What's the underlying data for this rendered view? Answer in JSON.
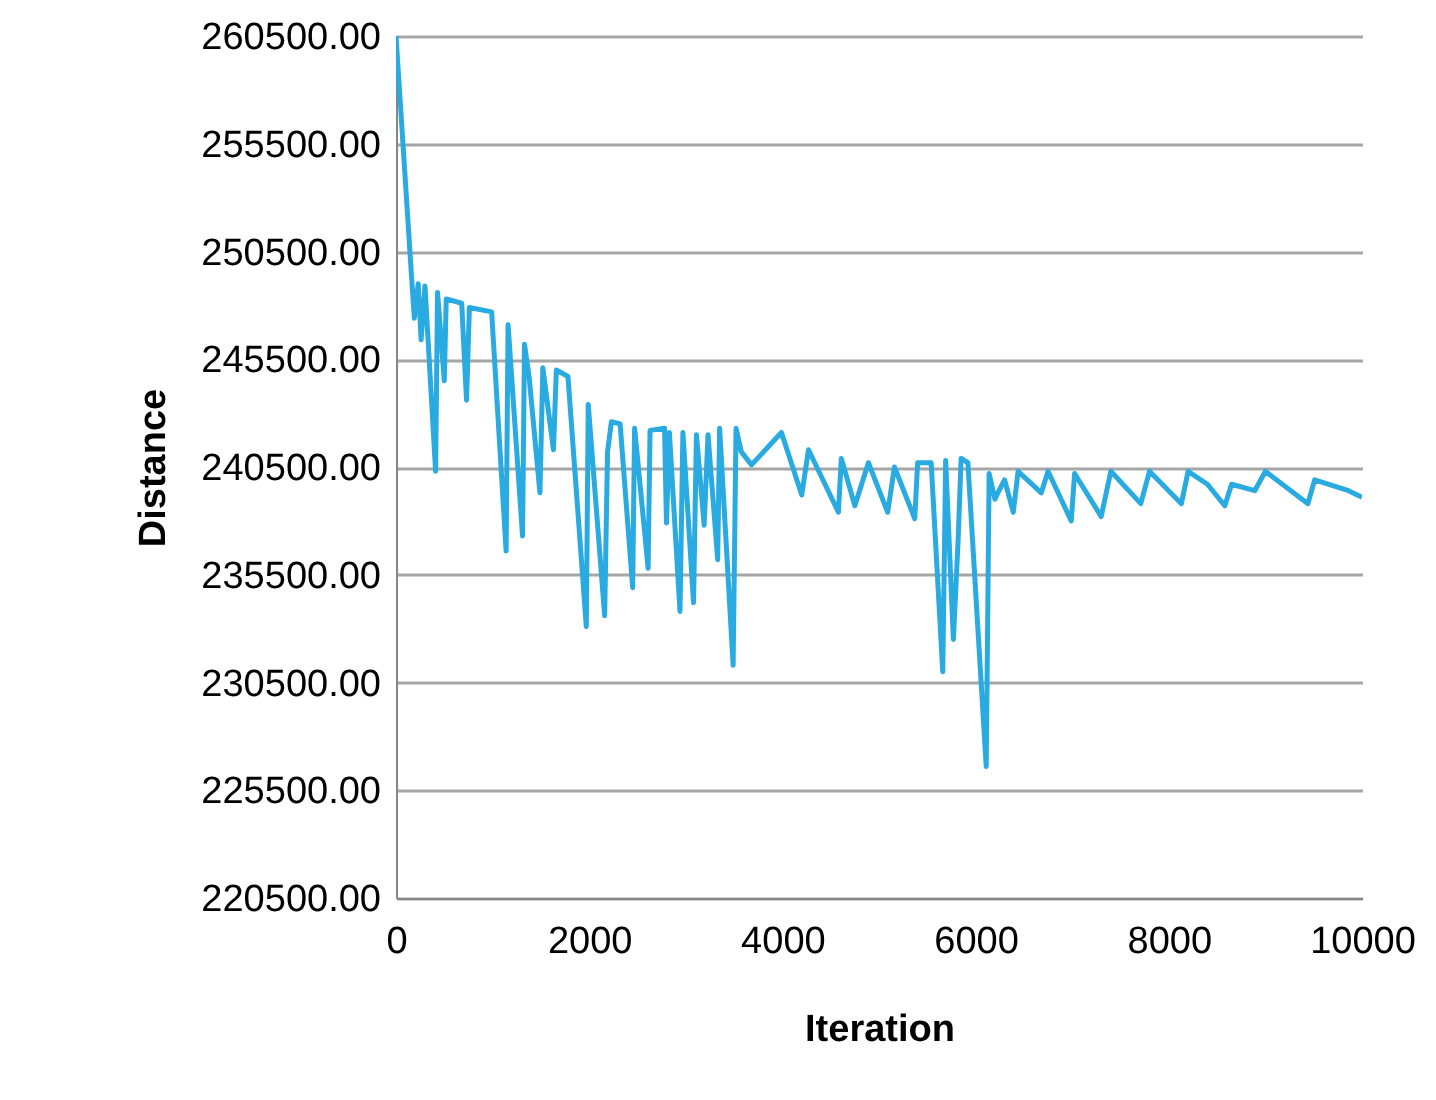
{
  "chart_data": {
    "type": "line",
    "xlabel": "Iteration",
    "ylabel": "Distance",
    "x": [
      0,
      160,
      190,
      230,
      260,
      300,
      410,
      430,
      500,
      520,
      680,
      730,
      760,
      990,
      1140,
      1160,
      1310,
      1330,
      1380,
      1490,
      1520,
      1630,
      1660,
      1780,
      1970,
      1990,
      2160,
      2190,
      2230,
      2320,
      2450,
      2470,
      2610,
      2630,
      2780,
      2800,
      2830,
      2940,
      2970,
      3080,
      3110,
      3190,
      3230,
      3330,
      3350,
      3490,
      3520,
      3575,
      3680,
      3990,
      4200,
      4270,
      4580,
      4610,
      4750,
      4890,
      5090,
      5160,
      5370,
      5400,
      5540,
      5660,
      5690,
      5770,
      5820,
      5850,
      5920,
      6110,
      6140,
      6200,
      6230,
      6300,
      6390,
      6440,
      6680,
      6750,
      6990,
      7025,
      7300,
      7400,
      7710,
      7800,
      8130,
      8200,
      8400,
      8580,
      8650,
      8890,
      9000,
      9440,
      9510,
      9860,
      10000
    ],
    "series": [
      {
        "color": "#29abe2",
        "values": [
          260500,
          249400,
          247400,
          249000,
          246400,
          248900,
          240300,
          248600,
          244500,
          248300,
          248100,
          243600,
          247900,
          247700,
          236600,
          247100,
          237300,
          246200,
          244600,
          239300,
          245100,
          241300,
          245000,
          244700,
          233100,
          243400,
          233600,
          241200,
          242600,
          242500,
          234900,
          242300,
          235800,
          242200,
          242300,
          237900,
          242100,
          233800,
          242100,
          234200,
          242000,
          237800,
          242000,
          236200,
          242300,
          231300,
          242300,
          241200,
          240600,
          242100,
          239200,
          241300,
          238400,
          240900,
          238700,
          240700,
          238400,
          240500,
          238100,
          240700,
          240700,
          231000,
          240800,
          232500,
          237200,
          240900,
          240700,
          226600,
          240200,
          239000,
          239300,
          239900,
          238400,
          240300,
          239300,
          240300,
          238000,
          240200,
          238200,
          240300,
          238800,
          240300,
          238800,
          240300,
          239700,
          238700,
          239700,
          239400,
          240300,
          238800,
          239900,
          239400,
          239100
        ]
      }
    ],
    "xlim": [
      0,
      10000
    ],
    "xticks": [
      0,
      2000,
      4000,
      6000,
      8000,
      10000
    ],
    "ylim": [
      220500,
      260500
    ],
    "yticks": [
      {
        "value": 220500,
        "label": "220500.00"
      },
      {
        "value": 225500,
        "label": "225500.00"
      },
      {
        "value": 230500,
        "label": "230500.00"
      },
      {
        "value": 235500,
        "label": "235500.00"
      },
      {
        "value": 240500,
        "label": "240500.00"
      },
      {
        "value": 245500,
        "label": "245500.00"
      },
      {
        "value": 250500,
        "label": "250500.00"
      },
      {
        "value": 255500,
        "label": "255500.00"
      },
      {
        "value": 260500,
        "label": "260500.00"
      }
    ],
    "grid": "y",
    "marker": "none",
    "line_style": "solid"
  }
}
